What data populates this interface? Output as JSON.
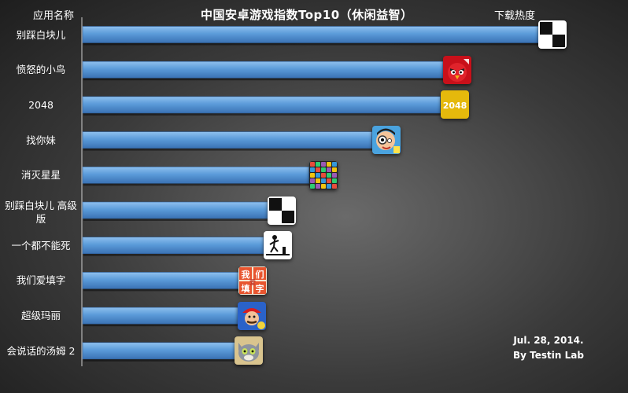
{
  "header": {
    "title": "中国安卓游戏指数Top10（休闲益智）",
    "left_column_label": "应用名称",
    "right_column_label": "下载热度"
  },
  "credit": {
    "date": "Jul. 28, 2014.",
    "author": "By Testin Lab"
  },
  "colors": {
    "bar_top": "#8fc0ee",
    "bar_mid": "#5b9bd9",
    "bar_bottom": "#3a72b4"
  },
  "chart_data": {
    "type": "bar",
    "orientation": "horizontal",
    "title": "中国安卓游戏指数Top10（休闲益智）",
    "xlabel": "下载热度",
    "ylabel": "应用名称",
    "categories": [
      "别踩白块儿",
      "愤怒的小鸟",
      "2048",
      "找你妹",
      "消灭星星",
      "别踩白块儿 高级版",
      "一个都不能死",
      "我们爱填字",
      "超级玛丽",
      "会说话的汤姆 2"
    ],
    "values": [
      100,
      79.1,
      78.5,
      63.5,
      49.7,
      40.6,
      39.7,
      34.2,
      34.1,
      33.4
    ],
    "icons": [
      "piano-tiles-icon",
      "angry-birds-icon",
      "2048-icon",
      "find-her-icon",
      "popstar-icon",
      "piano-tiles-icon",
      "stickman-icon",
      "word-puzzle-icon",
      "super-mario-icon",
      "talking-tom-icon"
    ],
    "icon_text": {
      "2048": "2048",
      "我们爱填字": "我们爱填字"
    },
    "xlim": [
      0,
      100
    ],
    "grid": false,
    "legend": "none"
  }
}
